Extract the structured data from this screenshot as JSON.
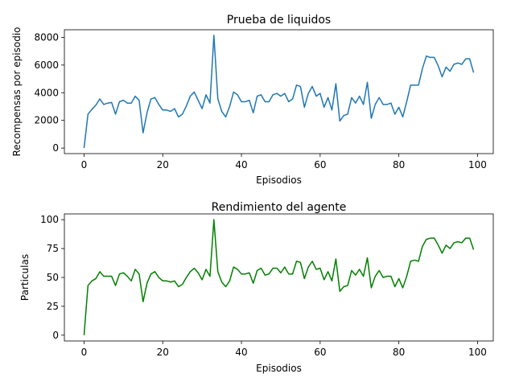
{
  "chart_data": [
    {
      "type": "line",
      "title": "Prueba de liquidos",
      "xlabel": "Episodios",
      "ylabel": "Recompensas por episodio",
      "xlim": [
        -5,
        104
      ],
      "ylim": [
        -400,
        8550
      ],
      "xticks": [
        0,
        20,
        40,
        60,
        80,
        100
      ],
      "yticks": [
        0,
        2000,
        4000,
        6000,
        8000
      ],
      "grid": false,
      "color": "#1f77b4",
      "series": [
        {
          "x": [
            0,
            1,
            2,
            3,
            4,
            5,
            6,
            7,
            8,
            9,
            10,
            11,
            12,
            13,
            14,
            15,
            16,
            17,
            18,
            19,
            20,
            21,
            22,
            23,
            24,
            25,
            26,
            27,
            28,
            29,
            30,
            31,
            32,
            33,
            34,
            35,
            36,
            37,
            38,
            39,
            40,
            41,
            42,
            43,
            44,
            45,
            46,
            47,
            48,
            49,
            50,
            51,
            52,
            53,
            54,
            55,
            56,
            57,
            58,
            59,
            60,
            61,
            62,
            63,
            64,
            65,
            66,
            67,
            68,
            69,
            70,
            71,
            72,
            73,
            74,
            75,
            76,
            77,
            78,
            79,
            80,
            81,
            82,
            83,
            84,
            85,
            86,
            87,
            88,
            89,
            90,
            91,
            92,
            93,
            94,
            95,
            96,
            97,
            98,
            99
          ],
          "values": [
            0,
            2450,
            2800,
            3100,
            3550,
            3150,
            3250,
            3300,
            2450,
            3350,
            3450,
            3250,
            3250,
            3750,
            3450,
            1100,
            2550,
            3550,
            3650,
            3150,
            2750,
            2750,
            2650,
            2850,
            2250,
            2450,
            3050,
            3750,
            4050,
            3450,
            2850,
            3850,
            3250,
            8150,
            3550,
            2650,
            2250,
            3000,
            4050,
            3850,
            3350,
            3350,
            3450,
            2550,
            3750,
            3850,
            3350,
            3350,
            3850,
            3950,
            3750,
            3950,
            3350,
            3550,
            4550,
            4450,
            2950,
            3950,
            4450,
            3750,
            3950,
            2950,
            3650,
            2750,
            4650,
            1950,
            2350,
            2450,
            3650,
            3250,
            3750,
            3150,
            4750,
            2150,
            3150,
            3650,
            3150,
            3150,
            3250,
            2450,
            2950,
            2250,
            3350,
            4550,
            4550,
            4550,
            5750,
            6650,
            6550,
            6550,
            5950,
            5150,
            5850,
            5550,
            6050,
            6150,
            6050,
            6450,
            6450,
            5450
          ]
        }
      ]
    },
    {
      "type": "line",
      "title": "Rendimiento del agente",
      "xlabel": "Episodios",
      "ylabel": "Particulas",
      "xlim": [
        -5,
        104
      ],
      "ylim": [
        -5,
        105
      ],
      "xticks": [
        0,
        20,
        40,
        60,
        80,
        100
      ],
      "yticks": [
        0,
        25,
        50,
        75,
        100
      ],
      "grid": false,
      "color": "#008000",
      "series": [
        {
          "x": [
            0,
            1,
            2,
            3,
            4,
            5,
            6,
            7,
            8,
            9,
            10,
            11,
            12,
            13,
            14,
            15,
            16,
            17,
            18,
            19,
            20,
            21,
            22,
            23,
            24,
            25,
            26,
            27,
            28,
            29,
            30,
            31,
            32,
            33,
            34,
            35,
            36,
            37,
            38,
            39,
            40,
            41,
            42,
            43,
            44,
            45,
            46,
            47,
            48,
            49,
            50,
            51,
            52,
            53,
            54,
            55,
            56,
            57,
            58,
            59,
            60,
            61,
            62,
            63,
            64,
            65,
            66,
            67,
            68,
            69,
            70,
            71,
            72,
            73,
            74,
            75,
            76,
            77,
            78,
            79,
            80,
            81,
            82,
            83,
            84,
            85,
            86,
            87,
            88,
            89,
            90,
            91,
            92,
            93,
            94,
            95,
            96,
            97,
            98,
            99
          ],
          "values": [
            0,
            43,
            47,
            49,
            55,
            51,
            51,
            51,
            43,
            53,
            54,
            51,
            47,
            57,
            53,
            29,
            45,
            53,
            55,
            50,
            47,
            47,
            46,
            47,
            42,
            44,
            50,
            55,
            58,
            54,
            48,
            57,
            51,
            100,
            55,
            46,
            42,
            47,
            59,
            57,
            53,
            53,
            54,
            45,
            56,
            58,
            52,
            53,
            58,
            58,
            54,
            59,
            53,
            53,
            64,
            63,
            49,
            59,
            64,
            57,
            58,
            48,
            55,
            47,
            66,
            38,
            42,
            43,
            56,
            52,
            57,
            51,
            67,
            41,
            51,
            56,
            50,
            51,
            51,
            42,
            49,
            41,
            51,
            64,
            65,
            64,
            77,
            83,
            84,
            84,
            78,
            71,
            78,
            75,
            80,
            81,
            80,
            84,
            84,
            74
          ]
        }
      ]
    }
  ]
}
